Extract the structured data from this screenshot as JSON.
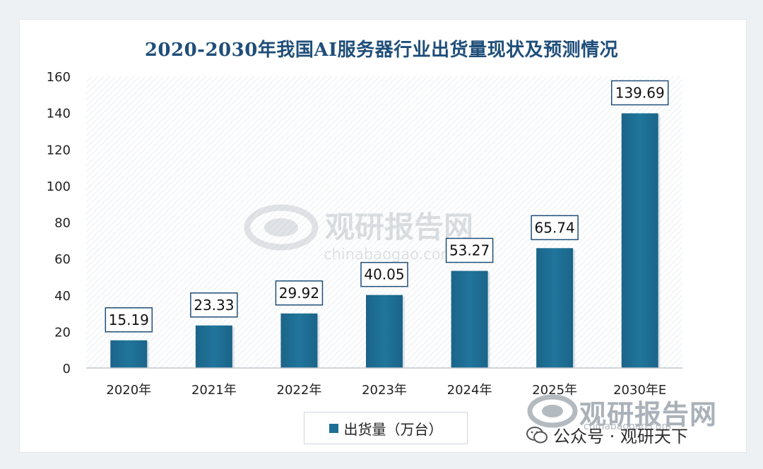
{
  "chart_data": {
    "type": "bar",
    "title": "2020-2030年我国AI服务器行业出货量现状及预测情况",
    "categories": [
      "2020年",
      "2021年",
      "2022年",
      "2023年",
      "2024年",
      "2025年",
      "2030年E"
    ],
    "series": [
      {
        "name": "出货量（万台）",
        "values": [
          15.19,
          23.33,
          29.92,
          40.05,
          53.27,
          65.74,
          139.69
        ]
      }
    ],
    "value_labels": [
      "15.19",
      "23.33",
      "29.92",
      "40.05",
      "53.27",
      "65.74",
      "139.69"
    ],
    "ylim": [
      0,
      160
    ],
    "yticks": [
      0,
      20,
      40,
      60,
      80,
      100,
      120,
      140,
      160
    ],
    "grid": false,
    "legend_position": "bottom-center",
    "bar_color": "#1f6f94",
    "title_color": "#1f4e79"
  },
  "watermarks": {
    "center_brand": "观研报告网",
    "center_url": "chinabaogao.com",
    "corner_brand": "观研报告网",
    "corner_url": "chinabaogao.com",
    "public_account": "公众号 · 观研天下"
  },
  "icons": {
    "logo": "swirl-logo-icon",
    "wechat": "wechat-icon"
  }
}
